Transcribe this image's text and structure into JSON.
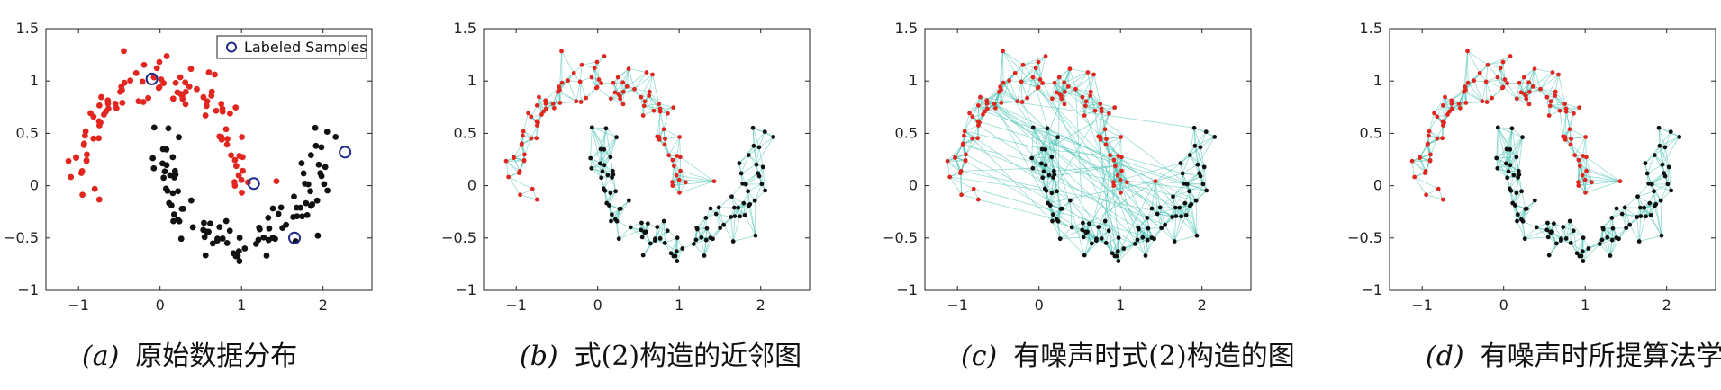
{
  "colors": {
    "class_a": "#e0261f",
    "class_b": "#111111",
    "edge": "#3fbfb1",
    "labeled_ring": "#1f2a8a",
    "axis": "#222222"
  },
  "chart_data": [
    {
      "type": "scatter",
      "panel": "a",
      "caption_letter": "(a)",
      "caption_text": "原始数据分布",
      "edges": "none",
      "xlim": [
        -1.4,
        2.6
      ],
      "ylim": [
        -1,
        1.5
      ],
      "xticks": [
        "−1",
        "0",
        "1",
        "2"
      ],
      "yticks": [
        "1.5",
        "1",
        "0.5",
        "0",
        "−0.5",
        "−1"
      ],
      "legend": {
        "label": "Labeled Samples",
        "placement": "top-right"
      },
      "labeled_points": [
        [
          -0.1,
          1.02
        ],
        [
          1.15,
          0.02
        ],
        [
          1.65,
          -0.5
        ],
        [
          2.27,
          0.32
        ]
      ]
    },
    {
      "type": "scatter",
      "panel": "b",
      "caption_letter": "(b)",
      "caption_text": "式(2)构造的近邻图",
      "edges": "clean",
      "xlim": [
        -1.4,
        2.6
      ],
      "ylim": [
        -1,
        1.5
      ],
      "xticks": [
        "−1",
        "0",
        "1",
        "2"
      ],
      "yticks": [
        "1.5",
        "1",
        "0.5",
        "0",
        "−0.5",
        "−1"
      ]
    },
    {
      "type": "scatter",
      "panel": "c",
      "caption_letter": "(c)",
      "caption_text": "有噪声时式(2)构造的图",
      "edges": "noisy",
      "xlim": [
        -1.4,
        2.6
      ],
      "ylim": [
        -1,
        1.5
      ],
      "xticks": [
        "−1",
        "0",
        "1",
        "2"
      ],
      "yticks": [
        "1.5",
        "1",
        "0.5",
        "0",
        "−0.5",
        "−1"
      ]
    },
    {
      "type": "scatter",
      "panel": "d",
      "caption_letter": "(d)",
      "caption_text": "有噪声时所提算法学习的",
      "edges": "learned",
      "xlim": [
        -1.4,
        2.6
      ],
      "ylim": [
        -1,
        1.5
      ],
      "xticks": [
        "−1",
        "0",
        "1",
        "2"
      ],
      "yticks": [
        "1.5",
        "1",
        "0.5",
        "0",
        "−0.5",
        "−1"
      ]
    }
  ]
}
